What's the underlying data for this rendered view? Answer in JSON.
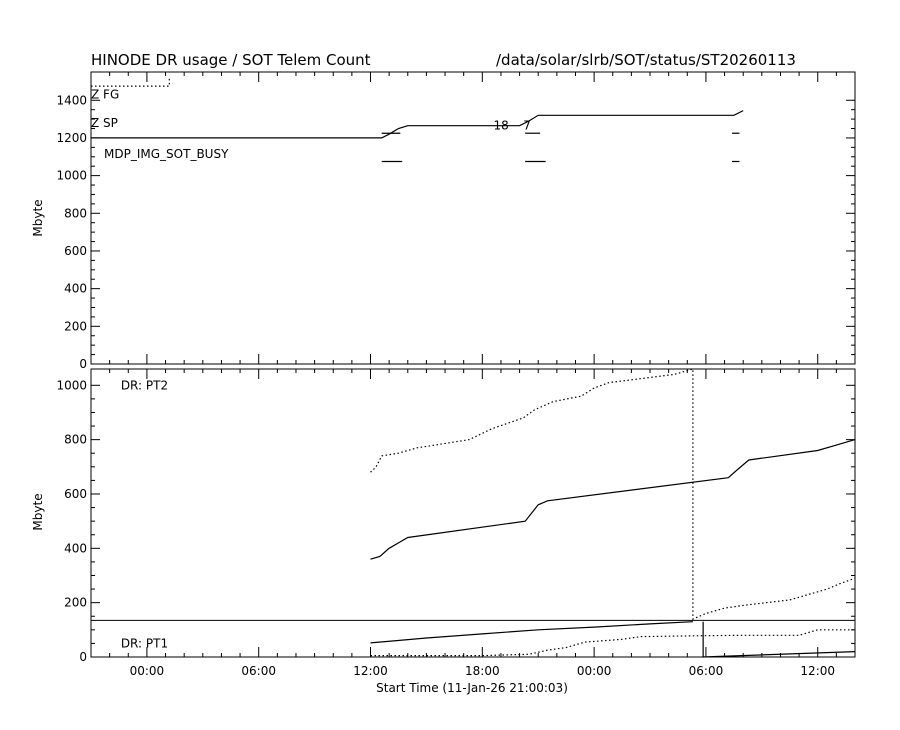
{
  "chart_data": [
    {
      "type": "line",
      "panel": "top",
      "title": "HINODE DR usage / SOT Telem Count",
      "path_label": "/data/solar/slrb/SOT/status/ST20260113",
      "xlabel": "Start Time (11-Jan-26 21:00:03)",
      "ylabel": "Mbyte",
      "ylim": [
        0,
        1550
      ],
      "yticks": [
        0,
        200,
        400,
        600,
        800,
        1000,
        1200,
        1400
      ],
      "xlim": [
        -3,
        38
      ],
      "xticks": [
        0,
        6,
        12,
        18,
        24,
        30,
        36
      ],
      "xtick_labels": [
        "00:00",
        "06:00",
        "12:00",
        "18:00",
        "00:00",
        "06:00",
        "12:00"
      ],
      "annotations": [
        {
          "text": "Z FG",
          "x": -3,
          "y": 1430
        },
        {
          "text": "Z SP",
          "x": -3,
          "y": 1280
        },
        {
          "text": "MDP_IMG_SOT_BUSY",
          "x": -2.3,
          "y": 1115
        },
        {
          "text": "18",
          "x": 18.6,
          "y": 1265
        },
        {
          "text": "7",
          "x": 20.2,
          "y": 1265
        }
      ],
      "series": [
        {
          "style": "dotted",
          "x": [
            -3,
            1.2,
            1.2
          ],
          "y": [
            1475,
            1475,
            1520
          ]
        },
        {
          "style": "solid",
          "x": [
            -3,
            12.6,
            13.0,
            13.5,
            14.0,
            20.0,
            20.5,
            21.0,
            31.5,
            32
          ],
          "y": [
            1200,
            1200,
            1220,
            1250,
            1265,
            1265,
            1290,
            1320,
            1320,
            1345
          ]
        }
      ],
      "segments": [
        {
          "row": "sp",
          "x": [
            [
              12.6,
              13.6
            ],
            [
              20.3,
              21.1
            ],
            [
              31.4,
              31.8
            ]
          ]
        },
        {
          "row": "busy",
          "x": [
            [
              12.6,
              13.7
            ],
            [
              20.3,
              21.4
            ],
            [
              31.4,
              31.8
            ]
          ]
        }
      ]
    },
    {
      "type": "line",
      "panel": "bottom",
      "xlabel": "Start Time (11-Jan-26 21:00:03)",
      "ylabel": "Mbyte",
      "ylim": [
        0,
        1060
      ],
      "yticks": [
        0,
        200,
        400,
        600,
        800,
        1000
      ],
      "xlim": [
        -3,
        38
      ],
      "xticks": [
        0,
        6,
        12,
        18,
        24,
        30,
        36
      ],
      "xtick_labels": [
        "00:00",
        "06:00",
        "12:00",
        "18:00",
        "00:00",
        "06:00",
        "12:00"
      ],
      "divider_y": 135,
      "annotations": [
        {
          "text": "DR: PT2",
          "x": -1.4,
          "y": 1000
        },
        {
          "text": "DR: PT1",
          "x": -1.4,
          "y": 50
        }
      ],
      "series": [
        {
          "name": "DR: PT2",
          "style": "solid",
          "x": [
            12,
            12.5,
            13.0,
            13.5,
            14.0,
            20.3,
            21.0,
            21.5,
            31.2,
            31.7,
            32.3,
            36.0,
            37.0,
            38
          ],
          "y": [
            360,
            370,
            400,
            420,
            440,
            500,
            560,
            575,
            660,
            690,
            725,
            760,
            780,
            800
          ]
        },
        {
          "name": "DR: PT2",
          "style": "dotted",
          "x": [
            12,
            12.3,
            12.6,
            13.5,
            14.0,
            14.5,
            15,
            17.3,
            17.9,
            18.5,
            20.2,
            20.8,
            21.8,
            23.3,
            24.0,
            24.8,
            28.3,
            28.8,
            29.3,
            29.3,
            30.0,
            31.0,
            32.0,
            34.5,
            36.5,
            37.2,
            38
          ],
          "y": [
            680,
            700,
            740,
            750,
            760,
            770,
            775,
            800,
            820,
            840,
            880,
            910,
            940,
            960,
            990,
            1010,
            1040,
            1050,
            1060,
            140,
            160,
            180,
            190,
            210,
            250,
            270,
            290
          ]
        },
        {
          "name": "DR: PT1",
          "style": "solid",
          "x": [
            12,
            15,
            18,
            21,
            24,
            27,
            29.3
          ],
          "y": [
            52,
            70,
            85,
            100,
            110,
            122,
            130
          ]
        },
        {
          "name": "DR: PT1",
          "style": "dotted",
          "x": [
            12,
            18,
            20.5,
            21.5,
            22.5,
            23.5,
            25.5,
            26.5,
            29.5,
            32,
            35,
            36.0,
            38
          ],
          "y": [
            5,
            5,
            10,
            25,
            35,
            55,
            65,
            75,
            78,
            80,
            80,
            100,
            100
          ]
        },
        {
          "name": "DR: PT1",
          "style": "solid",
          "x": [
            29.8,
            38
          ],
          "y": [
            0,
            20
          ]
        }
      ],
      "vertical_lines": [
        {
          "x": 29.85,
          "y0": 0,
          "y1": 130
        }
      ]
    }
  ]
}
